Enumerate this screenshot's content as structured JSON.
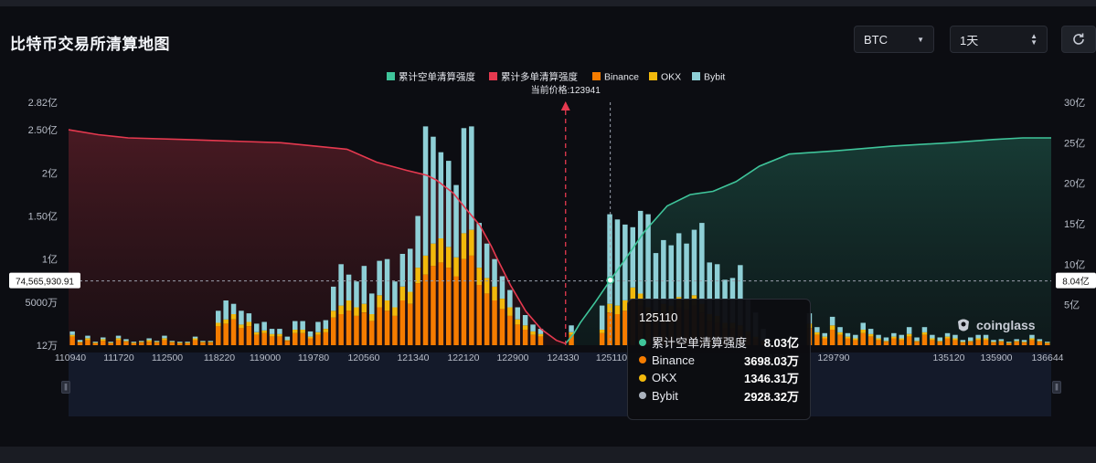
{
  "page": {
    "title": "比特币交易所清算地图",
    "coin_select": "BTC",
    "time_select": "1天",
    "watermark": "coinglass"
  },
  "colors": {
    "short_line": "#3fc49a",
    "long_line": "#e5394f",
    "binance": "#f57c00",
    "okx": "#f2b90c",
    "bybit": "#8ecfd6",
    "background": "#0c0d12"
  },
  "chart_data": {
    "type": "bar",
    "legend": [
      {
        "name": "累计空单清算强度",
        "color": "#3fc49a"
      },
      {
        "name": "累计多单清算强度",
        "color": "#e5394f"
      },
      {
        "name": "Binance",
        "color": "#f57c00"
      },
      {
        "name": "OKX",
        "color": "#f2b90c"
      },
      {
        "name": "Bybit",
        "color": "#8ecfd6"
      }
    ],
    "current_price_label": "当前价格:123941",
    "current_price": 123941,
    "x_tick_labels": [
      "110940",
      "111720",
      "112500",
      "118220",
      "119000",
      "119780",
      "120560",
      "121340",
      "122120",
      "122900",
      "124330",
      "125110",
      "129010",
      "129790",
      "135120",
      "135900",
      "136644"
    ],
    "left_axis": {
      "ticks": [
        {
          "v": 0.12,
          "label": "12万"
        },
        {
          "v": 50,
          "label": "5000万"
        },
        {
          "v": 100,
          "label": "1亿"
        },
        {
          "v": 150,
          "label": "1.50亿"
        },
        {
          "v": 200,
          "label": "2亿"
        },
        {
          "v": 250,
          "label": "2.50亿"
        },
        {
          "v": 282,
          "label": "2.82亿"
        }
      ],
      "range": [
        0,
        282
      ]
    },
    "right_axis": {
      "ticks": [
        {
          "v": 5,
          "label": "5亿"
        },
        {
          "v": 10,
          "label": "10亿"
        },
        {
          "v": 15,
          "label": "15亿"
        },
        {
          "v": 20,
          "label": "20亿"
        },
        {
          "v": 25,
          "label": "25亿"
        },
        {
          "v": 30,
          "label": "30亿"
        }
      ],
      "range": [
        0,
        30
      ]
    },
    "crosshair_left_label": "74,565,930.91",
    "crosshair_left_value": 74.57,
    "crosshair_right_label": "8.04亿",
    "bars_unit": "百万",
    "bars_binance": [
      10,
      3,
      6,
      2,
      5,
      2,
      6,
      4,
      2,
      3,
      4,
      3,
      6,
      3,
      2,
      2,
      6,
      3,
      3,
      22,
      25,
      30,
      20,
      22,
      12,
      14,
      10,
      10,
      5,
      14,
      14,
      8,
      12,
      15,
      32,
      36,
      40,
      34,
      38,
      28,
      44,
      40,
      34,
      52,
      48,
      72,
      82,
      92,
      96,
      90,
      80,
      100,
      104,
      70,
      60,
      52,
      42,
      34,
      24,
      18,
      12,
      10,
      0,
      0,
      0,
      12,
      0,
      0,
      0,
      14,
      38,
      36,
      40,
      52,
      46,
      34,
      30,
      38,
      36,
      44,
      42,
      46,
      38,
      28,
      26,
      20,
      20,
      18,
      12,
      8,
      4,
      0,
      0,
      0,
      0,
      0,
      20,
      12,
      8,
      18,
      12,
      8,
      6,
      14,
      10,
      6,
      4,
      8,
      6,
      10,
      4,
      12,
      6,
      4,
      8,
      6,
      3,
      4,
      6,
      6,
      3,
      4,
      2,
      4,
      3,
      6,
      4,
      2
    ],
    "bars_okx": [
      2,
      1,
      2,
      1,
      2,
      1,
      2,
      1,
      1,
      1,
      2,
      1,
      2,
      1,
      1,
      1,
      2,
      1,
      1,
      4,
      5,
      6,
      4,
      5,
      3,
      3,
      3,
      3,
      1,
      4,
      4,
      2,
      3,
      4,
      8,
      10,
      12,
      10,
      10,
      8,
      14,
      12,
      10,
      16,
      14,
      18,
      22,
      26,
      28,
      24,
      22,
      30,
      30,
      20,
      18,
      16,
      12,
      10,
      6,
      5,
      4,
      3,
      0,
      0,
      0,
      3,
      0,
      0,
      0,
      4,
      10,
      10,
      12,
      15,
      14,
      10,
      9,
      10,
      10,
      12,
      12,
      12,
      10,
      8,
      8,
      6,
      6,
      5,
      4,
      2,
      1,
      0,
      0,
      0,
      0,
      0,
      5,
      3,
      2,
      5,
      3,
      2,
      2,
      4,
      3,
      2,
      1,
      2,
      2,
      3,
      1,
      3,
      2,
      1,
      2,
      2,
      1,
      1,
      2,
      2,
      1,
      1,
      1,
      1,
      1,
      2,
      1,
      1
    ],
    "bars_bybit": [
      4,
      2,
      3,
      1,
      2,
      1,
      3,
      2,
      1,
      1,
      2,
      1,
      3,
      1,
      1,
      1,
      2,
      1,
      1,
      14,
      22,
      12,
      16,
      10,
      10,
      10,
      6,
      6,
      4,
      10,
      10,
      6,
      12,
      10,
      28,
      48,
      30,
      30,
      44,
      24,
      40,
      48,
      30,
      38,
      50,
      60,
      150,
      124,
      100,
      100,
      84,
      122,
      120,
      52,
      40,
      32,
      26,
      20,
      14,
      12,
      8,
      6,
      0,
      0,
      0,
      8,
      0,
      0,
      0,
      28,
      104,
      100,
      88,
      70,
      96,
      108,
      68,
      74,
      70,
      74,
      64,
      76,
      94,
      60,
      60,
      50,
      52,
      70,
      38,
      28,
      14,
      0,
      0,
      0,
      0,
      0,
      12,
      6,
      4,
      10,
      6,
      4,
      4,
      8,
      6,
      4,
      4,
      4,
      4,
      8,
      4,
      6,
      4,
      4,
      4,
      4,
      2,
      4,
      4,
      4,
      2,
      2,
      1,
      2,
      2,
      4,
      2,
      1
    ],
    "long_cumulative": {
      "unit": "亿",
      "points": [
        [
          110940,
          26.6
        ],
        [
          111720,
          26.0
        ],
        [
          112500,
          25.6
        ],
        [
          114000,
          25.4
        ],
        [
          116500,
          25.0
        ],
        [
          118220,
          24.2
        ],
        [
          119000,
          22.6
        ],
        [
          119780,
          21.6
        ],
        [
          120300,
          21.0
        ],
        [
          120560,
          20.4
        ],
        [
          121000,
          18.8
        ],
        [
          121340,
          16.8
        ],
        [
          121700,
          14.8
        ],
        [
          122000,
          12.2
        ],
        [
          122120,
          11.0
        ],
        [
          122500,
          7.4
        ],
        [
          122900,
          4.2
        ],
        [
          123300,
          2.0
        ],
        [
          123700,
          0.6
        ],
        [
          123941,
          0.2
        ]
      ]
    },
    "short_cumulative": {
      "unit": "亿",
      "points": [
        [
          123941,
          0.2
        ],
        [
          124150,
          1.4
        ],
        [
          124330,
          2.8
        ],
        [
          124700,
          5.2
        ],
        [
          125110,
          8.03
        ],
        [
          125500,
          10.6
        ],
        [
          126000,
          14.0
        ],
        [
          126600,
          17.2
        ],
        [
          127200,
          18.6
        ],
        [
          127800,
          19.0
        ],
        [
          128400,
          20.2
        ],
        [
          129010,
          22.1
        ],
        [
          129790,
          23.6
        ],
        [
          131000,
          24.0
        ],
        [
          132500,
          24.6
        ],
        [
          134000,
          25.0
        ],
        [
          135120,
          25.4
        ],
        [
          135900,
          25.6
        ],
        [
          136644,
          25.6
        ]
      ]
    },
    "hover": {
      "price": 125110,
      "title": "125110",
      "rows": [
        {
          "name": "累计空单清算强度",
          "value": "8.03亿",
          "color": "#3fc49a"
        },
        {
          "name": "Binance",
          "value": "3698.03万",
          "color": "#f57c00"
        },
        {
          "name": "OKX",
          "value": "1346.31万",
          "color": "#f2b90c"
        },
        {
          "name": "Bybit",
          "value": "2928.32万",
          "color": "#aab2bd"
        }
      ]
    }
  }
}
